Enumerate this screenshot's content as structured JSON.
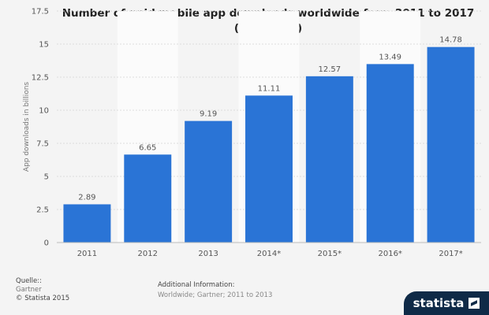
{
  "chart_data": {
    "type": "bar",
    "title": "Number of paid mobile app downloads worldwide from 2011 to 2017 (in billions)",
    "xlabel": "",
    "ylabel": "App downloads in billions",
    "categories": [
      "2011",
      "2012",
      "2013",
      "2014*",
      "2015*",
      "2016*",
      "2017*"
    ],
    "values": [
      2.89,
      6.65,
      9.19,
      11.11,
      12.57,
      13.49,
      14.78
    ],
    "value_labels": [
      "2.89",
      "6.65",
      "9.19",
      "11.11",
      "12.57",
      "13.49",
      "14.78"
    ],
    "ylim": [
      0,
      17.5
    ],
    "yticks": [
      0,
      2.5,
      5,
      7.5,
      10,
      12.5,
      15,
      17.5
    ],
    "ytick_labels": [
      "0",
      "2.5",
      "5",
      "7.5",
      "10",
      "12.5",
      "15",
      "17.5"
    ],
    "grid": true,
    "bar_color": "#2a74d6"
  },
  "footer": {
    "source_heading": "Quelle::",
    "source": "Gartner",
    "copyright": "© Statista 2015",
    "additional_heading": "Additional Information:",
    "additional_text": "Worldwide; Gartner; 2011 to 2013"
  },
  "brand": {
    "name": "statista",
    "icon": "statista-logo-icon"
  }
}
